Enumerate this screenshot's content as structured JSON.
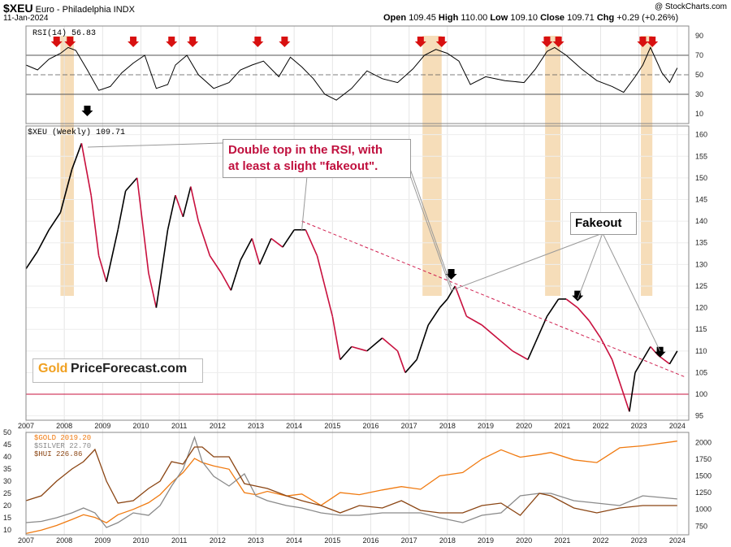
{
  "header": {
    "symbol": "$XEU",
    "name": "Euro - Philadelphia INDX",
    "date": "11-Jan-2024",
    "watermark": "@ StockCharts.com",
    "ohlc": {
      "open_label": "Open",
      "open": "109.45",
      "high_label": "High",
      "high": "110.00",
      "low_label": "Low",
      "low": "109.10",
      "close_label": "Close",
      "close": "109.71",
      "chg_label": "Chg",
      "chg": "+0.29 (+0.26%)"
    }
  },
  "logo": {
    "part1": "Gold",
    "part2": "PriceForecast.com"
  },
  "annotations": {
    "double_top_line1": "Double top in the RSI, with",
    "double_top_line2": "at least a slight \"fakeout\".",
    "fakeout": "Fakeout"
  },
  "colors": {
    "price": "#000000",
    "price_down": "#c8103e",
    "highlight": "#f5d7ad",
    "trendline": "#d02050",
    "gold": "#f07a10",
    "silver": "#8a8a8a",
    "hui": "#8b4513",
    "red_arrow": "#d81010",
    "black_arrow": "#000000",
    "callout_text": "#c0103e"
  },
  "chart_data": [
    {
      "type": "line",
      "title": "RSI(14) 56.83",
      "series": [
        {
          "name": "RSI(14)",
          "last": 56.83
        }
      ],
      "x": [
        2007.0,
        2007.3,
        2007.6,
        2007.9,
        2008.1,
        2008.3,
        2008.6,
        2008.9,
        2009.2,
        2009.5,
        2009.8,
        2010.1,
        2010.4,
        2010.7,
        2010.9,
        2011.2,
        2011.5,
        2011.9,
        2012.3,
        2012.6,
        2012.9,
        2013.2,
        2013.6,
        2013.9,
        2014.2,
        2014.5,
        2014.8,
        2015.1,
        2015.5,
        2015.9,
        2016.3,
        2016.7,
        2017.1,
        2017.4,
        2017.7,
        2018.0,
        2018.3,
        2018.6,
        2019.0,
        2019.5,
        2020.0,
        2020.3,
        2020.6,
        2020.8,
        2021.1,
        2021.5,
        2021.9,
        2022.3,
        2022.6,
        2022.9,
        2023.1,
        2023.3,
        2023.6,
        2023.8,
        2024.0
      ],
      "values": [
        60,
        55,
        66,
        72,
        78,
        75,
        55,
        34,
        38,
        52,
        62,
        70,
        36,
        40,
        60,
        70,
        50,
        36,
        42,
        55,
        60,
        64,
        48,
        68,
        58,
        46,
        30,
        24,
        36,
        54,
        46,
        42,
        56,
        70,
        76,
        72,
        64,
        40,
        48,
        44,
        42,
        56,
        74,
        78,
        70,
        56,
        44,
        38,
        32,
        48,
        60,
        78,
        52,
        42,
        57
      ],
      "ylim": [
        0,
        100
      ],
      "yticks": [
        10,
        30,
        50,
        70,
        90
      ],
      "ref_lines": [
        30,
        50,
        70
      ],
      "red_arrows_x": [
        2007.8,
        2008.15,
        2009.8,
        2010.8,
        2011.35,
        2013.05,
        2013.75,
        2017.3,
        2017.85,
        2020.6,
        2020.9,
        2023.1,
        2023.35
      ],
      "black_arrows_x": [
        2008.6
      ]
    },
    {
      "type": "line",
      "title": "$XEU (Weekly) 109.71",
      "series": [
        {
          "name": "$XEU (Weekly)",
          "last": 109.71
        }
      ],
      "x": [
        2007.0,
        2007.3,
        2007.6,
        2007.9,
        2008.2,
        2008.45,
        2008.7,
        2008.9,
        2009.1,
        2009.4,
        2009.6,
        2009.9,
        2010.2,
        2010.4,
        2010.7,
        2010.9,
        2011.1,
        2011.3,
        2011.5,
        2011.8,
        2012.1,
        2012.35,
        2012.6,
        2012.9,
        2013.1,
        2013.4,
        2013.7,
        2014.0,
        2014.3,
        2014.6,
        2014.8,
        2015.0,
        2015.2,
        2015.5,
        2015.9,
        2016.3,
        2016.7,
        2016.9,
        2017.2,
        2017.5,
        2017.8,
        2018.0,
        2018.2,
        2018.5,
        2018.9,
        2019.3,
        2019.7,
        2020.1,
        2020.3,
        2020.6,
        2020.9,
        2021.1,
        2021.4,
        2021.7,
        2022.0,
        2022.3,
        2022.6,
        2022.75,
        2022.9,
        2023.1,
        2023.3,
        2023.5,
        2023.8,
        2024.0
      ],
      "values": [
        129,
        133,
        138,
        142,
        152,
        158,
        146,
        132,
        126,
        138,
        147,
        150,
        128,
        120,
        138,
        146,
        141,
        148,
        140,
        132,
        128,
        124,
        131,
        136,
        130,
        136,
        134,
        138,
        138,
        132,
        125,
        118,
        108,
        111,
        110,
        113,
        110,
        105,
        108,
        116,
        120,
        122,
        125,
        118,
        116,
        113,
        110,
        108,
        112,
        118,
        122,
        122,
        120,
        117,
        113,
        108,
        100,
        96,
        105,
        108,
        111,
        109,
        107,
        110
      ],
      "ylim": [
        94,
        162
      ],
      "yticks": [
        95,
        100,
        105,
        110,
        115,
        120,
        125,
        130,
        135,
        140,
        145,
        150,
        155,
        160
      ],
      "hlines": [
        100
      ],
      "trendline": {
        "from": [
          2014.2,
          140
        ],
        "to": [
          2024.2,
          104
        ]
      },
      "black_arrows_x": [
        2018.1,
        2021.4,
        2023.55
      ]
    },
    {
      "type": "line",
      "title": "$GOLD 2019.20",
      "series": [
        {
          "name": "$GOLD 2019.20",
          "axis": "right",
          "values": [
            640,
            690,
            760,
            850,
            920,
            880,
            800,
            920,
            1000,
            1100,
            1220,
            1400,
            1550,
            1760,
            1700,
            1650,
            1600,
            1250,
            1220,
            1270,
            1200,
            1230,
            1060,
            1250,
            1220,
            1290,
            1340,
            1300,
            1500,
            1550,
            1750,
            1890,
            1780,
            1820,
            1850,
            1740,
            1700,
            1920,
            1950,
            2020
          ]
        },
        {
          "name": "$SILVER 22.70",
          "axis": "left",
          "values": [
            13,
            13.5,
            15,
            17,
            19,
            17,
            11,
            13,
            17,
            16,
            20,
            28,
            35,
            48,
            38,
            32,
            28,
            33,
            24,
            22,
            20,
            19,
            17,
            16,
            16,
            17,
            17,
            17,
            15,
            13,
            16,
            17,
            24,
            25,
            25,
            22,
            21,
            20,
            24,
            22.7
          ]
        },
        {
          "name": "$HUI 226.86",
          "axis": "left",
          "values": [
            22,
            24,
            30,
            35,
            38,
            43,
            30,
            21,
            22,
            27,
            30,
            38,
            37,
            44,
            44,
            40,
            40,
            29,
            28,
            27,
            24,
            22,
            20,
            17,
            20,
            19,
            22,
            18,
            17,
            17,
            20,
            21,
            16,
            25,
            24,
            19,
            17,
            19,
            20,
            20
          ]
        }
      ],
      "x": [
        2007.0,
        2007.4,
        2007.8,
        2008.2,
        2008.5,
        2008.8,
        2009.1,
        2009.4,
        2009.8,
        2010.2,
        2010.5,
        2010.8,
        2011.1,
        2011.4,
        2011.6,
        2011.9,
        2012.3,
        2012.7,
        2013.0,
        2013.3,
        2013.8,
        2014.2,
        2014.7,
        2015.2,
        2015.7,
        2016.3,
        2016.8,
        2017.3,
        2017.8,
        2018.4,
        2018.9,
        2019.4,
        2019.9,
        2020.4,
        2020.7,
        2021.3,
        2021.9,
        2022.5,
        2023.1,
        2024.0
      ],
      "ylim_left": [
        8,
        50
      ],
      "ylim_right": [
        620,
        2150
      ],
      "yticks_left": [
        10,
        15,
        20,
        25,
        30,
        35,
        40,
        45,
        50
      ],
      "yticks_right": [
        750,
        1000,
        1250,
        1500,
        1750,
        2000
      ]
    }
  ],
  "x_axis": {
    "ticks": [
      "2007",
      "2008",
      "2009",
      "2010",
      "2011",
      "2012",
      "2013",
      "2014",
      "2015",
      "2016",
      "2017",
      "2018",
      "2019",
      "2020",
      "2021",
      "2022",
      "2023",
      "2024"
    ]
  },
  "highlight_bands": [
    [
      2007.9,
      2008.25
    ],
    [
      2017.35,
      2017.85
    ],
    [
      2020.55,
      2020.95
    ],
    [
      2023.05,
      2023.35
    ]
  ]
}
